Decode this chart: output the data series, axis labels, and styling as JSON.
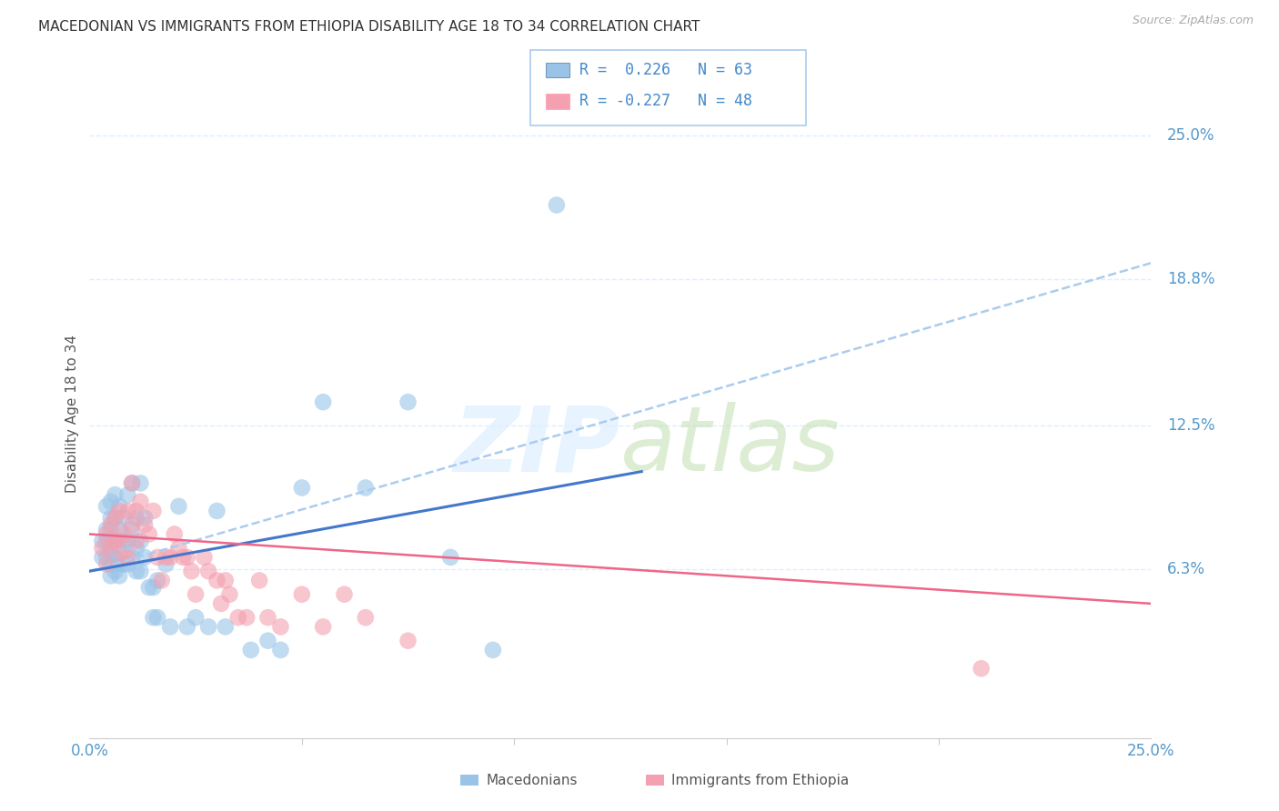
{
  "title": "MACEDONIAN VS IMMIGRANTS FROM ETHIOPIA DISABILITY AGE 18 TO 34 CORRELATION CHART",
  "source": "Source: ZipAtlas.com",
  "ylabel": "Disability Age 18 to 34",
  "xlabel_ticks": [
    "0.0%",
    "25.0%"
  ],
  "ylabel_ticks_right": [
    "25.0%",
    "18.8%",
    "12.5%",
    "6.3%"
  ],
  "ytick_values": [
    0.25,
    0.188,
    0.125,
    0.063
  ],
  "xlim": [
    0.0,
    0.25
  ],
  "ylim": [
    -0.01,
    0.27
  ],
  "legend_blue_r": "0.226",
  "legend_blue_n": "63",
  "legend_pink_r": "-0.227",
  "legend_pink_n": "48",
  "blue_color": "#99C4E8",
  "pink_color": "#F4A0B0",
  "blue_line_color": "#4477CC",
  "pink_line_color": "#EE6688",
  "dashed_line_color": "#AACCEE",
  "grid_color": "#DDEEFF",
  "right_label_color": "#5599CC",
  "title_color": "#333333",
  "source_color": "#AAAAAA",
  "ylabel_color": "#555555",
  "blue_scatter": {
    "x": [
      0.003,
      0.003,
      0.004,
      0.004,
      0.004,
      0.004,
      0.005,
      0.005,
      0.005,
      0.005,
      0.005,
      0.005,
      0.005,
      0.006,
      0.006,
      0.006,
      0.006,
      0.006,
      0.007,
      0.007,
      0.007,
      0.007,
      0.007,
      0.008,
      0.008,
      0.008,
      0.009,
      0.009,
      0.009,
      0.01,
      0.01,
      0.01,
      0.011,
      0.011,
      0.011,
      0.012,
      0.012,
      0.012,
      0.013,
      0.013,
      0.014,
      0.015,
      0.015,
      0.016,
      0.016,
      0.018,
      0.019,
      0.021,
      0.023,
      0.025,
      0.028,
      0.03,
      0.032,
      0.038,
      0.042,
      0.045,
      0.05,
      0.055,
      0.065,
      0.075,
      0.085,
      0.095,
      0.11
    ],
    "y": [
      0.075,
      0.068,
      0.09,
      0.08,
      0.075,
      0.068,
      0.092,
      0.085,
      0.08,
      0.075,
      0.07,
      0.065,
      0.06,
      0.095,
      0.085,
      0.075,
      0.068,
      0.062,
      0.09,
      0.08,
      0.072,
      0.065,
      0.06,
      0.085,
      0.075,
      0.065,
      0.095,
      0.075,
      0.065,
      0.1,
      0.08,
      0.068,
      0.085,
      0.072,
      0.062,
      0.1,
      0.075,
      0.062,
      0.085,
      0.068,
      0.055,
      0.055,
      0.042,
      0.058,
      0.042,
      0.065,
      0.038,
      0.09,
      0.038,
      0.042,
      0.038,
      0.088,
      0.038,
      0.028,
      0.032,
      0.028,
      0.098,
      0.135,
      0.098,
      0.135,
      0.068,
      0.028,
      0.22
    ]
  },
  "pink_scatter": {
    "x": [
      0.003,
      0.004,
      0.004,
      0.005,
      0.005,
      0.006,
      0.006,
      0.007,
      0.007,
      0.008,
      0.008,
      0.009,
      0.009,
      0.01,
      0.01,
      0.011,
      0.011,
      0.012,
      0.013,
      0.014,
      0.015,
      0.016,
      0.017,
      0.018,
      0.019,
      0.02,
      0.021,
      0.022,
      0.023,
      0.024,
      0.025,
      0.027,
      0.028,
      0.03,
      0.031,
      0.032,
      0.033,
      0.035,
      0.037,
      0.04,
      0.042,
      0.045,
      0.05,
      0.055,
      0.06,
      0.065,
      0.075,
      0.21
    ],
    "y": [
      0.072,
      0.078,
      0.065,
      0.082,
      0.072,
      0.085,
      0.075,
      0.088,
      0.075,
      0.078,
      0.068,
      0.088,
      0.068,
      0.1,
      0.082,
      0.088,
      0.075,
      0.092,
      0.082,
      0.078,
      0.088,
      0.068,
      0.058,
      0.068,
      0.068,
      0.078,
      0.072,
      0.068,
      0.068,
      0.062,
      0.052,
      0.068,
      0.062,
      0.058,
      0.048,
      0.058,
      0.052,
      0.042,
      0.042,
      0.058,
      0.042,
      0.038,
      0.052,
      0.038,
      0.052,
      0.042,
      0.032,
      0.02
    ]
  },
  "blue_line_x": [
    0.0,
    0.13
  ],
  "blue_line_y": [
    0.062,
    0.105
  ],
  "pink_line_x": [
    0.0,
    0.25
  ],
  "pink_line_y": [
    0.078,
    0.048
  ],
  "dashed_line_x": [
    0.0,
    0.25
  ],
  "dashed_line_y": [
    0.062,
    0.195
  ]
}
